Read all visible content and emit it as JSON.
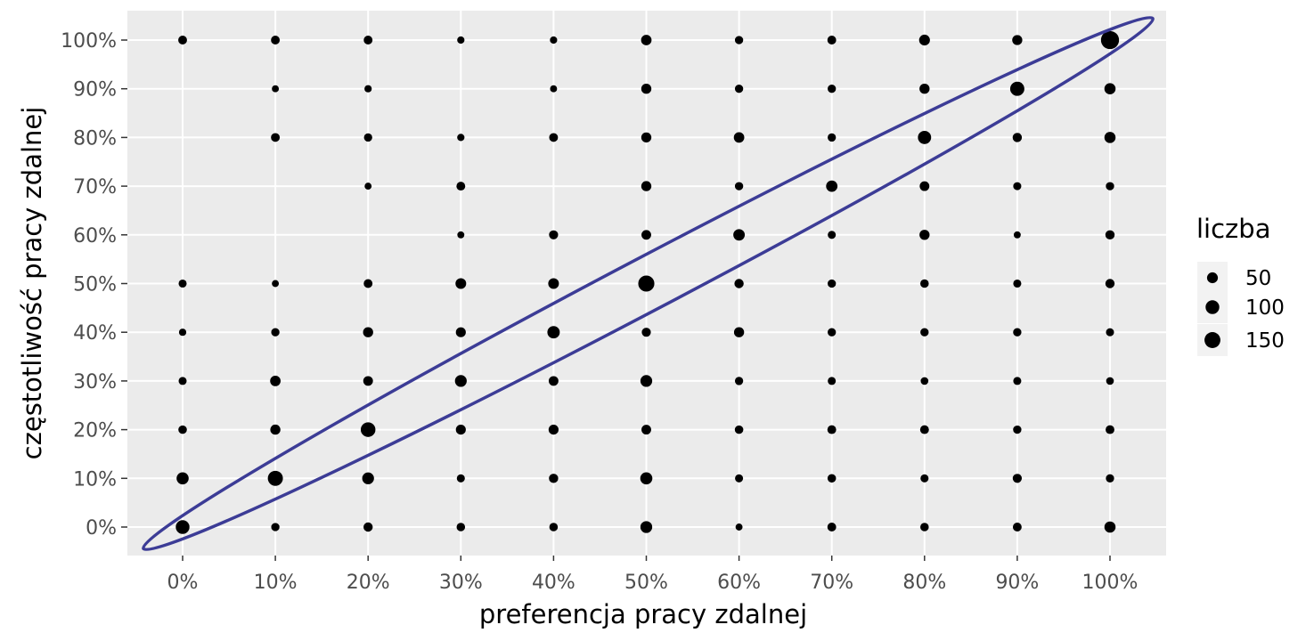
{
  "chart_data": {
    "type": "scatter",
    "xlabel": "preferencja pracy zdalnej",
    "ylabel": "częstotliwość pracy zdalnej",
    "x_values": [
      0,
      10,
      20,
      30,
      40,
      50,
      60,
      70,
      80,
      90,
      100
    ],
    "y_values": [
      0,
      10,
      20,
      30,
      40,
      50,
      60,
      70,
      80,
      90,
      100
    ],
    "x_tick_labels": [
      "0%",
      "10%",
      "20%",
      "30%",
      "40%",
      "50%",
      "60%",
      "70%",
      "80%",
      "90%",
      "100%"
    ],
    "y_tick_labels": [
      "0%",
      "10%",
      "20%",
      "30%",
      "40%",
      "50%",
      "60%",
      "70%",
      "80%",
      "90%",
      "100%"
    ],
    "xlim": [
      -5,
      105
    ],
    "ylim": [
      -5,
      106
    ],
    "grid": true,
    "size_legend": {
      "title": "liczba",
      "values": [
        50,
        100,
        150
      ],
      "labels": [
        "50",
        "100",
        "150"
      ],
      "placement": "right"
    },
    "annotation": {
      "type": "ellipse",
      "description": "diagonal highlight from (0%,0%) to (100%,100%)",
      "color": "#3c3c96"
    },
    "colors": {
      "panel": "#ebebeb",
      "grid": "#ffffff",
      "point": "#000000"
    },
    "points": [
      [
        0,
        0,
        100
      ],
      [
        10,
        0,
        20
      ],
      [
        20,
        0,
        30
      ],
      [
        30,
        0,
        22
      ],
      [
        40,
        0,
        22
      ],
      [
        50,
        0,
        65
      ],
      [
        60,
        0,
        10
      ],
      [
        70,
        0,
        25
      ],
      [
        80,
        0,
        22
      ],
      [
        90,
        0,
        25
      ],
      [
        100,
        0,
        55
      ],
      [
        0,
        10,
        70
      ],
      [
        10,
        10,
        130
      ],
      [
        20,
        10,
        65
      ],
      [
        30,
        10,
        18
      ],
      [
        40,
        10,
        30
      ],
      [
        50,
        10,
        70
      ],
      [
        60,
        10,
        18
      ],
      [
        70,
        10,
        22
      ],
      [
        80,
        10,
        18
      ],
      [
        90,
        10,
        28
      ],
      [
        100,
        10,
        20
      ],
      [
        0,
        20,
        22
      ],
      [
        10,
        20,
        40
      ],
      [
        20,
        20,
        120
      ],
      [
        30,
        20,
        38
      ],
      [
        40,
        20,
        38
      ],
      [
        50,
        20,
        35
      ],
      [
        60,
        20,
        22
      ],
      [
        70,
        20,
        25
      ],
      [
        80,
        20,
        25
      ],
      [
        90,
        20,
        20
      ],
      [
        100,
        20,
        25
      ],
      [
        0,
        30,
        18
      ],
      [
        10,
        30,
        45
      ],
      [
        20,
        30,
        35
      ],
      [
        30,
        30,
        65
      ],
      [
        40,
        30,
        35
      ],
      [
        50,
        30,
        65
      ],
      [
        60,
        30,
        20
      ],
      [
        70,
        30,
        18
      ],
      [
        80,
        30,
        15
      ],
      [
        90,
        30,
        18
      ],
      [
        100,
        30,
        15
      ],
      [
        0,
        40,
        12
      ],
      [
        10,
        40,
        20
      ],
      [
        20,
        40,
        40
      ],
      [
        30,
        40,
        38
      ],
      [
        40,
        40,
        75
      ],
      [
        50,
        40,
        28
      ],
      [
        60,
        40,
        40
      ],
      [
        70,
        40,
        20
      ],
      [
        80,
        40,
        20
      ],
      [
        90,
        40,
        20
      ],
      [
        100,
        40,
        18
      ],
      [
        0,
        50,
        18
      ],
      [
        10,
        50,
        10
      ],
      [
        20,
        50,
        25
      ],
      [
        30,
        50,
        48
      ],
      [
        40,
        50,
        48
      ],
      [
        50,
        50,
        155
      ],
      [
        60,
        50,
        30
      ],
      [
        70,
        50,
        20
      ],
      [
        80,
        50,
        22
      ],
      [
        90,
        50,
        18
      ],
      [
        100,
        50,
        30
      ],
      [
        0,
        60,
        0
      ],
      [
        10,
        60,
        0
      ],
      [
        20,
        60,
        0
      ],
      [
        30,
        60,
        10
      ],
      [
        40,
        60,
        28
      ],
      [
        50,
        60,
        35
      ],
      [
        60,
        60,
        60
      ],
      [
        70,
        60,
        18
      ],
      [
        80,
        60,
        40
      ],
      [
        90,
        60,
        10
      ],
      [
        100,
        60,
        30
      ],
      [
        0,
        70,
        0
      ],
      [
        10,
        70,
        0
      ],
      [
        20,
        70,
        10
      ],
      [
        30,
        70,
        25
      ],
      [
        40,
        70,
        0
      ],
      [
        50,
        70,
        40
      ],
      [
        60,
        70,
        20
      ],
      [
        70,
        70,
        58
      ],
      [
        80,
        70,
        35
      ],
      [
        90,
        70,
        18
      ],
      [
        100,
        70,
        20
      ],
      [
        0,
        80,
        0
      ],
      [
        10,
        80,
        25
      ],
      [
        20,
        80,
        20
      ],
      [
        30,
        80,
        12
      ],
      [
        40,
        80,
        25
      ],
      [
        50,
        80,
        40
      ],
      [
        60,
        80,
        45
      ],
      [
        70,
        80,
        20
      ],
      [
        80,
        80,
        90
      ],
      [
        90,
        80,
        30
      ],
      [
        100,
        80,
        55
      ],
      [
        0,
        90,
        0
      ],
      [
        10,
        90,
        10
      ],
      [
        20,
        90,
        12
      ],
      [
        30,
        90,
        0
      ],
      [
        40,
        90,
        10
      ],
      [
        50,
        90,
        40
      ],
      [
        60,
        90,
        20
      ],
      [
        70,
        90,
        20
      ],
      [
        80,
        90,
        40
      ],
      [
        90,
        90,
        110
      ],
      [
        100,
        90,
        55
      ],
      [
        0,
        100,
        25
      ],
      [
        10,
        100,
        25
      ],
      [
        20,
        100,
        25
      ],
      [
        30,
        100,
        12
      ],
      [
        40,
        100,
        12
      ],
      [
        50,
        100,
        45
      ],
      [
        60,
        100,
        20
      ],
      [
        70,
        100,
        25
      ],
      [
        80,
        100,
        50
      ],
      [
        90,
        100,
        40
      ],
      [
        100,
        100,
        210
      ]
    ]
  }
}
